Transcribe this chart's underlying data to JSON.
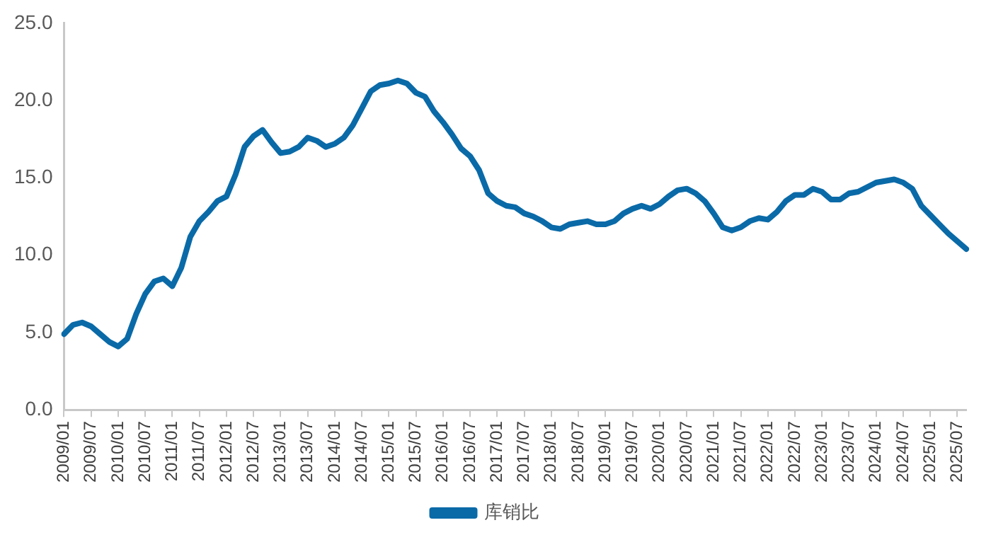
{
  "chart_data": {
    "type": "line",
    "categories": [
      "2009/01",
      null,
      null,
      "2009/07",
      null,
      null,
      "2010/01",
      null,
      null,
      "2010/07",
      null,
      null,
      "2011/01",
      null,
      null,
      "2011/07",
      null,
      null,
      "2012/01",
      null,
      null,
      "2012/07",
      null,
      null,
      "2013/01",
      null,
      null,
      "2013/07",
      null,
      null,
      "2014/01",
      null,
      null,
      "2014/07",
      null,
      null,
      "2015/01",
      null,
      null,
      "2015/07",
      null,
      null,
      "2016/01",
      null,
      null,
      "2016/07",
      null,
      null,
      "2017/01",
      null,
      null,
      "2017/07",
      null,
      null,
      "2018/01",
      null,
      null,
      "2018/07",
      null,
      null,
      "2019/01",
      null,
      null,
      "2019/07",
      null,
      null,
      "2020/01",
      null,
      null,
      "2020/07",
      null,
      null,
      "2021/01",
      null,
      null,
      "2021/07",
      null,
      null,
      "2022/01",
      null,
      null,
      "2022/07",
      null,
      null,
      "2023/01",
      null,
      null,
      "2023/07",
      null,
      null,
      "2024/01",
      null,
      null,
      "2024/07",
      null,
      null,
      "2025/01",
      null,
      null,
      "2025/07",
      null
    ],
    "series": [
      {
        "name": "库销比",
        "color": "#0a6aa8",
        "values": [
          4.9,
          5.5,
          5.65,
          5.4,
          4.9,
          4.4,
          4.1,
          4.6,
          6.2,
          7.5,
          8.3,
          8.5,
          8.0,
          9.2,
          11.2,
          12.2,
          12.8,
          13.5,
          13.8,
          15.2,
          17.0,
          17.7,
          18.1,
          17.3,
          16.6,
          16.7,
          17.0,
          17.6,
          17.4,
          17.0,
          17.2,
          17.6,
          18.4,
          19.5,
          20.6,
          21.0,
          21.1,
          21.3,
          21.1,
          20.5,
          20.25,
          19.3,
          18.6,
          17.8,
          16.9,
          16.4,
          15.5,
          14.0,
          13.5,
          13.2,
          13.1,
          12.7,
          12.5,
          12.2,
          11.8,
          11.7,
          12.0,
          12.1,
          12.2,
          12.0,
          12.0,
          12.2,
          12.7,
          13.0,
          13.2,
          13.0,
          13.3,
          13.8,
          14.2,
          14.3,
          14.0,
          13.5,
          12.7,
          11.8,
          11.6,
          11.8,
          12.2,
          12.4,
          12.3,
          12.8,
          13.5,
          13.9,
          13.9,
          14.3,
          14.1,
          13.6,
          13.6,
          14.0,
          14.1,
          14.4,
          14.7,
          14.8,
          14.9,
          14.7,
          14.3,
          13.2,
          12.6,
          12.0,
          11.4,
          10.9,
          10.4
        ]
      }
    ],
    "ylim": [
      0,
      25
    ],
    "yticks": [
      {
        "value": 0,
        "label": "0.0"
      },
      {
        "value": 5,
        "label": "5.0"
      },
      {
        "value": 10,
        "label": "10.0"
      },
      {
        "value": 15,
        "label": "15.0"
      },
      {
        "value": 20,
        "label": "20.0"
      },
      {
        "value": 25,
        "label": "25.0"
      }
    ],
    "grid": false,
    "legend": "bottom",
    "marker": "none",
    "line_style": "solid"
  }
}
